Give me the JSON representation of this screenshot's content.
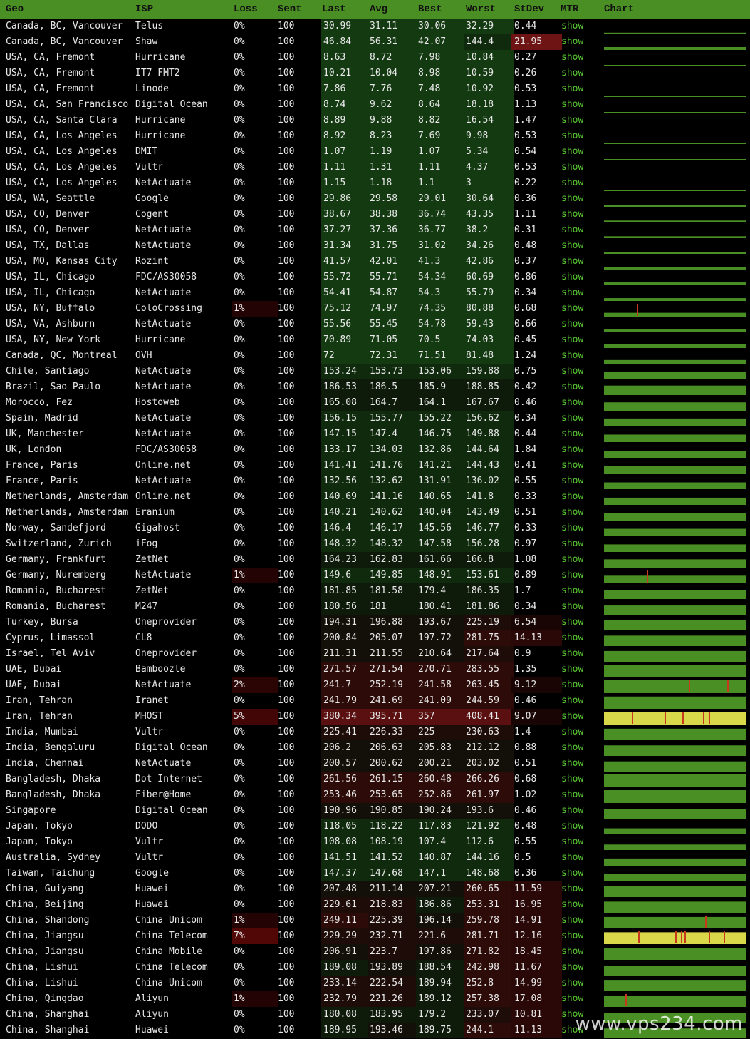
{
  "colors": {
    "header": "#4a8f24",
    "chart_fill": "#4a8f24",
    "loss_bar": "#c83a1e",
    "mtr_link": "#59c832"
  },
  "header": {
    "geo": "Geo",
    "isp": "ISP",
    "loss": "Loss",
    "sent": "Sent",
    "last": "Last",
    "avg": "Avg",
    "best": "Best",
    "worst": "Worst",
    "stdev": "StDev",
    "mtr": "MTR",
    "chart": "Chart"
  },
  "mtr_label": "show",
  "watermark": "www.vps234.com",
  "rows": [
    {
      "geo": "Canada, BC, Vancouver",
      "isp": "Telus",
      "loss": "0%",
      "sent": "100",
      "last": "30.99",
      "avg": "31.11",
      "best": "30.06",
      "worst": "32.29",
      "stdev": "0.44"
    },
    {
      "geo": "Canada, BC, Vancouver",
      "isp": "Shaw",
      "loss": "0%",
      "sent": "100",
      "last": "46.84",
      "avg": "56.31",
      "best": "42.07",
      "worst": "144.4",
      "stdev": "21.95"
    },
    {
      "geo": "USA, CA, Fremont",
      "isp": "Hurricane",
      "loss": "0%",
      "sent": "100",
      "last": "8.63",
      "avg": "8.72",
      "best": "7.98",
      "worst": "10.84",
      "stdev": "0.27"
    },
    {
      "geo": "USA, CA, Fremont",
      "isp": "IT7 FMT2",
      "loss": "0%",
      "sent": "100",
      "last": "10.21",
      "avg": "10.04",
      "best": "8.98",
      "worst": "10.59",
      "stdev": "0.26"
    },
    {
      "geo": "USA, CA, Fremont",
      "isp": "Linode",
      "loss": "0%",
      "sent": "100",
      "last": "7.86",
      "avg": "7.76",
      "best": "7.48",
      "worst": "10.92",
      "stdev": "0.53"
    },
    {
      "geo": "USA, CA, San Francisco",
      "isp": "Digital Ocean",
      "loss": "0%",
      "sent": "100",
      "last": "8.74",
      "avg": "9.62",
      "best": "8.64",
      "worst": "18.18",
      "stdev": "1.13"
    },
    {
      "geo": "USA, CA, Santa Clara",
      "isp": "Hurricane",
      "loss": "0%",
      "sent": "100",
      "last": "8.89",
      "avg": "9.88",
      "best": "8.82",
      "worst": "16.54",
      "stdev": "1.47"
    },
    {
      "geo": "USA, CA, Los Angeles",
      "isp": "Hurricane",
      "loss": "0%",
      "sent": "100",
      "last": "8.92",
      "avg": "8.23",
      "best": "7.69",
      "worst": "9.98",
      "stdev": "0.53"
    },
    {
      "geo": "USA, CA, Los Angeles",
      "isp": "DMIT",
      "loss": "0%",
      "sent": "100",
      "last": "1.07",
      "avg": "1.19",
      "best": "1.07",
      "worst": "5.34",
      "stdev": "0.54"
    },
    {
      "geo": "USA, CA, Los Angeles",
      "isp": "Vultr",
      "loss": "0%",
      "sent": "100",
      "last": "1.11",
      "avg": "1.31",
      "best": "1.11",
      "worst": "4.37",
      "stdev": "0.53"
    },
    {
      "geo": "USA, CA, Los Angeles",
      "isp": "NetActuate",
      "loss": "0%",
      "sent": "100",
      "last": "1.15",
      "avg": "1.18",
      "best": "1.1",
      "worst": "3",
      "stdev": "0.22"
    },
    {
      "geo": "USA, WA, Seattle",
      "isp": "Google",
      "loss": "0%",
      "sent": "100",
      "last": "29.86",
      "avg": "29.58",
      "best": "29.01",
      "worst": "30.64",
      "stdev": "0.36"
    },
    {
      "geo": "USA, CO, Denver",
      "isp": "Cogent",
      "loss": "0%",
      "sent": "100",
      "last": "38.67",
      "avg": "38.38",
      "best": "36.74",
      "worst": "43.35",
      "stdev": "1.11"
    },
    {
      "geo": "USA, CO, Denver",
      "isp": "NetActuate",
      "loss": "0%",
      "sent": "100",
      "last": "37.27",
      "avg": "37.36",
      "best": "36.77",
      "worst": "38.2",
      "stdev": "0.31"
    },
    {
      "geo": "USA, TX, Dallas",
      "isp": "NetActuate",
      "loss": "0%",
      "sent": "100",
      "last": "31.34",
      "avg": "31.75",
      "best": "31.02",
      "worst": "34.26",
      "stdev": "0.48"
    },
    {
      "geo": "USA, MO, Kansas City",
      "isp": "Rozint",
      "loss": "0%",
      "sent": "100",
      "last": "41.57",
      "avg": "42.01",
      "best": "41.3",
      "worst": "42.86",
      "stdev": "0.37"
    },
    {
      "geo": "USA, IL, Chicago",
      "isp": "FDC/AS30058",
      "loss": "0%",
      "sent": "100",
      "last": "55.72",
      "avg": "55.71",
      "best": "54.34",
      "worst": "60.69",
      "stdev": "0.86"
    },
    {
      "geo": "USA, IL, Chicago",
      "isp": "NetActuate",
      "loss": "0%",
      "sent": "100",
      "last": "54.41",
      "avg": "54.87",
      "best": "54.3",
      "worst": "55.79",
      "stdev": "0.34"
    },
    {
      "geo": "USA, NY, Buffalo",
      "isp": "ColoCrossing",
      "loss": "1%",
      "sent": "100",
      "last": "75.12",
      "avg": "74.97",
      "best": "74.35",
      "worst": "80.88",
      "stdev": "0.68"
    },
    {
      "geo": "USA, VA, Ashburn",
      "isp": "NetActuate",
      "loss": "0%",
      "sent": "100",
      "last": "55.56",
      "avg": "55.45",
      "best": "54.78",
      "worst": "59.43",
      "stdev": "0.66"
    },
    {
      "geo": "USA, NY, New York",
      "isp": "Hurricane",
      "loss": "0%",
      "sent": "100",
      "last": "70.89",
      "avg": "71.05",
      "best": "70.5",
      "worst": "74.03",
      "stdev": "0.45"
    },
    {
      "geo": "Canada, QC, Montreal",
      "isp": "OVH",
      "loss": "0%",
      "sent": "100",
      "last": "72",
      "avg": "72.31",
      "best": "71.51",
      "worst": "81.48",
      "stdev": "1.24"
    },
    {
      "geo": "Chile, Santiago",
      "isp": "NetActuate",
      "loss": "0%",
      "sent": "100",
      "last": "153.24",
      "avg": "153.73",
      "best": "153.06",
      "worst": "159.88",
      "stdev": "0.75"
    },
    {
      "geo": "Brazil, Sao Paulo",
      "isp": "NetActuate",
      "loss": "0%",
      "sent": "100",
      "last": "186.53",
      "avg": "186.5",
      "best": "185.9",
      "worst": "188.85",
      "stdev": "0.42"
    },
    {
      "geo": "Morocco, Fez",
      "isp": "Hostoweb",
      "loss": "0%",
      "sent": "100",
      "last": "165.08",
      "avg": "164.7",
      "best": "164.1",
      "worst": "167.67",
      "stdev": "0.46"
    },
    {
      "geo": "Spain, Madrid",
      "isp": "NetActuate",
      "loss": "0%",
      "sent": "100",
      "last": "156.15",
      "avg": "155.77",
      "best": "155.22",
      "worst": "156.62",
      "stdev": "0.34"
    },
    {
      "geo": "UK, Manchester",
      "isp": "NetActuate",
      "loss": "0%",
      "sent": "100",
      "last": "147.15",
      "avg": "147.4",
      "best": "146.75",
      "worst": "149.88",
      "stdev": "0.44"
    },
    {
      "geo": "UK, London",
      "isp": "FDC/AS30058",
      "loss": "0%",
      "sent": "100",
      "last": "133.17",
      "avg": "134.03",
      "best": "132.86",
      "worst": "144.64",
      "stdev": "1.84"
    },
    {
      "geo": "France, Paris",
      "isp": "Online.net",
      "loss": "0%",
      "sent": "100",
      "last": "141.41",
      "avg": "141.76",
      "best": "141.21",
      "worst": "144.43",
      "stdev": "0.41"
    },
    {
      "geo": "France, Paris",
      "isp": "NetActuate",
      "loss": "0%",
      "sent": "100",
      "last": "132.56",
      "avg": "132.62",
      "best": "131.91",
      "worst": "136.02",
      "stdev": "0.55"
    },
    {
      "geo": "Netherlands, Amsterdam",
      "isp": "Online.net",
      "loss": "0%",
      "sent": "100",
      "last": "140.69",
      "avg": "141.16",
      "best": "140.65",
      "worst": "141.8",
      "stdev": "0.33"
    },
    {
      "geo": "Netherlands, Amsterdam",
      "isp": "Eranium",
      "loss": "0%",
      "sent": "100",
      "last": "140.21",
      "avg": "140.62",
      "best": "140.04",
      "worst": "143.49",
      "stdev": "0.51"
    },
    {
      "geo": "Norway, Sandefjord",
      "isp": "Gigahost",
      "loss": "0%",
      "sent": "100",
      "last": "146.4",
      "avg": "146.17",
      "best": "145.56",
      "worst": "146.77",
      "stdev": "0.33"
    },
    {
      "geo": "Switzerland, Zurich",
      "isp": "iFog",
      "loss": "0%",
      "sent": "100",
      "last": "148.32",
      "avg": "148.32",
      "best": "147.58",
      "worst": "156.28",
      "stdev": "0.97"
    },
    {
      "geo": "Germany, Frankfurt",
      "isp": "ZetNet",
      "loss": "0%",
      "sent": "100",
      "last": "164.23",
      "avg": "162.83",
      "best": "161.66",
      "worst": "166.8",
      "stdev": "1.08"
    },
    {
      "geo": "Germany, Nuremberg",
      "isp": "NetActuate",
      "loss": "1%",
      "sent": "100",
      "last": "149.6",
      "avg": "149.85",
      "best": "148.91",
      "worst": "153.61",
      "stdev": "0.89"
    },
    {
      "geo": "Romania, Bucharest",
      "isp": "ZetNet",
      "loss": "0%",
      "sent": "100",
      "last": "181.85",
      "avg": "181.58",
      "best": "179.4",
      "worst": "186.35",
      "stdev": "1.7"
    },
    {
      "geo": "Romania, Bucharest",
      "isp": "M247",
      "loss": "0%",
      "sent": "100",
      "last": "180.56",
      "avg": "181",
      "best": "180.41",
      "worst": "181.86",
      "stdev": "0.34"
    },
    {
      "geo": "Turkey, Bursa",
      "isp": "Oneprovider",
      "loss": "0%",
      "sent": "100",
      "last": "194.31",
      "avg": "196.88",
      "best": "193.67",
      "worst": "225.19",
      "stdev": "6.54"
    },
    {
      "geo": "Cyprus, Limassol",
      "isp": "CL8",
      "loss": "0%",
      "sent": "100",
      "last": "200.84",
      "avg": "205.07",
      "best": "197.72",
      "worst": "281.75",
      "stdev": "14.13"
    },
    {
      "geo": "Israel, Tel Aviv",
      "isp": "Oneprovider",
      "loss": "0%",
      "sent": "100",
      "last": "211.31",
      "avg": "211.55",
      "best": "210.64",
      "worst": "217.64",
      "stdev": "0.9"
    },
    {
      "geo": "UAE, Dubai",
      "isp": "Bamboozle",
      "loss": "0%",
      "sent": "100",
      "last": "271.57",
      "avg": "271.54",
      "best": "270.71",
      "worst": "283.55",
      "stdev": "1.35"
    },
    {
      "geo": "UAE, Dubai",
      "isp": "NetActuate",
      "loss": "2%",
      "sent": "100",
      "last": "241.7",
      "avg": "252.19",
      "best": "241.58",
      "worst": "263.45",
      "stdev": "9.12"
    },
    {
      "geo": "Iran, Tehran",
      "isp": "Iranet",
      "loss": "0%",
      "sent": "100",
      "last": "241.79",
      "avg": "241.69",
      "best": "241.09",
      "worst": "244.59",
      "stdev": "0.46"
    },
    {
      "geo": "Iran, Tehran",
      "isp": "MHOST",
      "loss": "5%",
      "sent": "100",
      "last": "380.34",
      "avg": "395.71",
      "best": "357",
      "worst": "408.41",
      "stdev": "9.07"
    },
    {
      "geo": "India, Mumbai",
      "isp": "Vultr",
      "loss": "0%",
      "sent": "100",
      "last": "225.41",
      "avg": "226.33",
      "best": "225",
      "worst": "230.63",
      "stdev": "1.4"
    },
    {
      "geo": "India, Bengaluru",
      "isp": "Digital Ocean",
      "loss": "0%",
      "sent": "100",
      "last": "206.2",
      "avg": "206.63",
      "best": "205.83",
      "worst": "212.12",
      "stdev": "0.88"
    },
    {
      "geo": "India, Chennai",
      "isp": "NetActuate",
      "loss": "0%",
      "sent": "100",
      "last": "200.57",
      "avg": "200.62",
      "best": "200.21",
      "worst": "203.02",
      "stdev": "0.51"
    },
    {
      "geo": "Bangladesh, Dhaka",
      "isp": "Dot Internet",
      "loss": "0%",
      "sent": "100",
      "last": "261.56",
      "avg": "261.15",
      "best": "260.48",
      "worst": "266.26",
      "stdev": "0.68"
    },
    {
      "geo": "Bangladesh, Dhaka",
      "isp": "Fiber@Home",
      "loss": "0%",
      "sent": "100",
      "last": "253.46",
      "avg": "253.65",
      "best": "252.86",
      "worst": "261.97",
      "stdev": "1.02"
    },
    {
      "geo": "Singapore",
      "isp": "Digital Ocean",
      "loss": "0%",
      "sent": "100",
      "last": "190.96",
      "avg": "190.85",
      "best": "190.24",
      "worst": "193.6",
      "stdev": "0.46"
    },
    {
      "geo": "Japan, Tokyo",
      "isp": "DODO",
      "loss": "0%",
      "sent": "100",
      "last": "118.05",
      "avg": "118.22",
      "best": "117.83",
      "worst": "121.92",
      "stdev": "0.48"
    },
    {
      "geo": "Japan, Tokyo",
      "isp": "Vultr",
      "loss": "0%",
      "sent": "100",
      "last": "108.08",
      "avg": "108.19",
      "best": "107.4",
      "worst": "112.6",
      "stdev": "0.55"
    },
    {
      "geo": "Australia, Sydney",
      "isp": "Vultr",
      "loss": "0%",
      "sent": "100",
      "last": "141.51",
      "avg": "141.52",
      "best": "140.87",
      "worst": "144.16",
      "stdev": "0.5"
    },
    {
      "geo": "Taiwan, Taichung",
      "isp": "Google",
      "loss": "0%",
      "sent": "100",
      "last": "147.37",
      "avg": "147.68",
      "best": "147.1",
      "worst": "148.68",
      "stdev": "0.36"
    },
    {
      "geo": "China, Guiyang",
      "isp": "Huawei",
      "loss": "0%",
      "sent": "100",
      "last": "207.48",
      "avg": "211.14",
      "best": "207.21",
      "worst": "260.65",
      "stdev": "11.59"
    },
    {
      "geo": "China, Beijing",
      "isp": "Huawei",
      "loss": "0%",
      "sent": "100",
      "last": "229.61",
      "avg": "218.83",
      "best": "186.86",
      "worst": "253.31",
      "stdev": "16.95"
    },
    {
      "geo": "China, Shandong",
      "isp": "China Unicom",
      "loss": "1%",
      "sent": "100",
      "last": "249.11",
      "avg": "225.39",
      "best": "196.14",
      "worst": "259.78",
      "stdev": "14.91"
    },
    {
      "geo": "China, Jiangsu",
      "isp": "China Telecom",
      "loss": "7%",
      "sent": "100",
      "last": "229.29",
      "avg": "232.71",
      "best": "221.6",
      "worst": "281.71",
      "stdev": "12.16"
    },
    {
      "geo": "China, Jiangsu",
      "isp": "China Mobile",
      "loss": "0%",
      "sent": "100",
      "last": "206.91",
      "avg": "223.7",
      "best": "197.86",
      "worst": "271.82",
      "stdev": "18.45"
    },
    {
      "geo": "China, Lishui",
      "isp": "China Telecom",
      "loss": "0%",
      "sent": "100",
      "last": "189.08",
      "avg": "193.89",
      "best": "188.54",
      "worst": "242.98",
      "stdev": "11.67"
    },
    {
      "geo": "China, Lishui",
      "isp": "China Unicom",
      "loss": "0%",
      "sent": "100",
      "last": "233.14",
      "avg": "222.54",
      "best": "189.94",
      "worst": "252.8",
      "stdev": "14.99"
    },
    {
      "geo": "China, Qingdao",
      "isp": "Aliyun",
      "loss": "1%",
      "sent": "100",
      "last": "232.79",
      "avg": "221.26",
      "best": "189.12",
      "worst": "257.38",
      "stdev": "17.08"
    },
    {
      "geo": "China, Shanghai",
      "isp": "Aliyun",
      "loss": "0%",
      "sent": "100",
      "last": "180.08",
      "avg": "183.95",
      "best": "179.2",
      "worst": "233.07",
      "stdev": "10.81"
    },
    {
      "geo": "China, Shanghai",
      "isp": "Huawei",
      "loss": "0%",
      "sent": "100",
      "last": "189.95",
      "avg": "193.46",
      "best": "189.75",
      "worst": "244.1",
      "stdev": "11.13"
    }
  ]
}
